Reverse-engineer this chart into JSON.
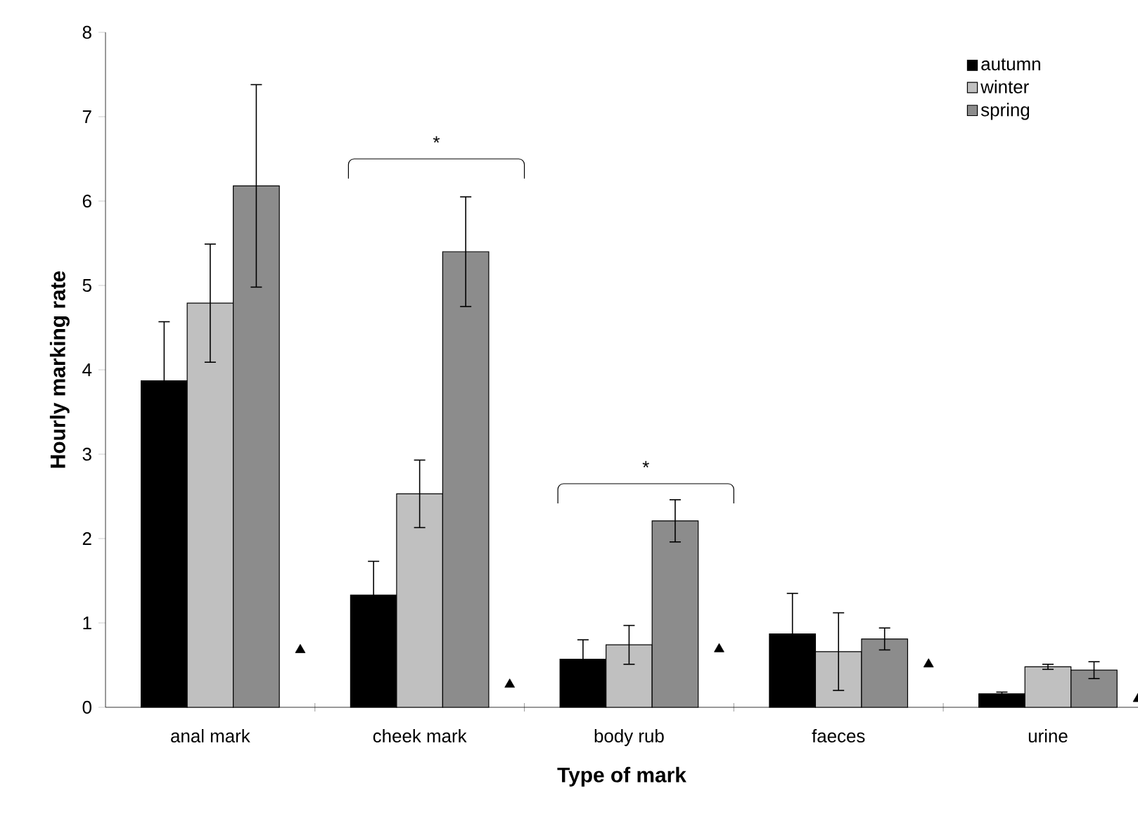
{
  "chart_data": {
    "type": "bar",
    "xlabel": "Type of mark",
    "ylabel": "Hourly marking rate",
    "categories": [
      "anal mark",
      "cheek mark",
      "body rub",
      "faeces",
      "urine"
    ],
    "series": [
      {
        "name": "autumn",
        "color": "#000000",
        "values": [
          3.87,
          1.33,
          0.57,
          0.87,
          0.16
        ],
        "errors": [
          0.7,
          0.4,
          0.23,
          0.48,
          0.02
        ]
      },
      {
        "name": "winter",
        "color": "#c0c0c0",
        "values": [
          4.79,
          2.53,
          0.74,
          0.66,
          0.48
        ],
        "errors": [
          0.7,
          0.4,
          0.23,
          0.46,
          0.03
        ]
      },
      {
        "name": "spring",
        "color": "#8c8c8c",
        "values": [
          6.18,
          5.4,
          2.21,
          0.81,
          0.44
        ],
        "errors": [
          1.2,
          0.65,
          0.25,
          0.13,
          0.1
        ]
      },
      {
        "type": "scatter",
        "marker": "triangle",
        "color": "#000000",
        "x": [
          "anal mark",
          "cheek mark",
          "body rub",
          "faeces",
          "urine"
        ],
        "values": [
          0.68,
          0.27,
          0.69,
          0.51,
          0.1
        ]
      }
    ],
    "ylim": [
      0,
      8
    ],
    "yticks": [
      0,
      1,
      2,
      3,
      4,
      5,
      6,
      7,
      8
    ],
    "grid": false,
    "legend": "top right",
    "annotations": [
      "*",
      "*"
    ]
  }
}
